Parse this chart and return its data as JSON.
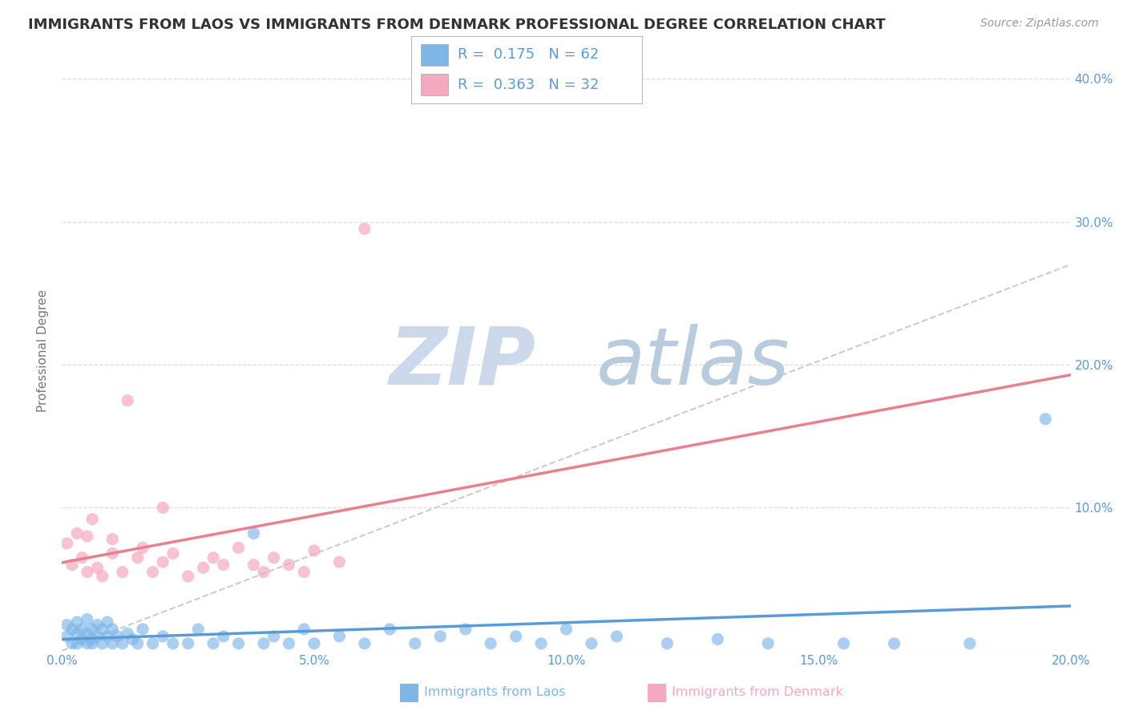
{
  "title": "IMMIGRANTS FROM LAOS VS IMMIGRANTS FROM DENMARK PROFESSIONAL DEGREE CORRELATION CHART",
  "source": "Source: ZipAtlas.com",
  "ylabel": "Professional Degree",
  "xlim": [
    0.0,
    0.2
  ],
  "ylim": [
    0.0,
    0.42
  ],
  "xticks": [
    0.0,
    0.05,
    0.1,
    0.15,
    0.2
  ],
  "xtick_labels": [
    "0.0%",
    "5.0%",
    "10.0%",
    "15.0%",
    "20.0%"
  ],
  "yticks": [
    0.0,
    0.1,
    0.2,
    0.3,
    0.4
  ],
  "right_ytick_labels": [
    "",
    "10.0%",
    "20.0%",
    "30.0%",
    "40.0%"
  ],
  "laos_color": "#7EB6E8",
  "denmark_color": "#F4A9C0",
  "laos_line_color": "#5B9BD5",
  "denmark_line_color": "#E88090",
  "tick_color": "#5B9BD5",
  "ylabel_color": "#777777",
  "grid_color": "#dddddd",
  "title_color": "#333333",
  "source_color": "#999999",
  "watermark_zip_color": "#ccd9eb",
  "watermark_atlas_color": "#b8ccde",
  "background_color": "#ffffff",
  "laos_R": 0.175,
  "laos_N": 62,
  "denmark_R": 0.363,
  "denmark_N": 32,
  "laos_scatter_x": [
    0.001,
    0.001,
    0.002,
    0.002,
    0.003,
    0.003,
    0.003,
    0.004,
    0.004,
    0.005,
    0.005,
    0.005,
    0.006,
    0.006,
    0.006,
    0.007,
    0.007,
    0.008,
    0.008,
    0.009,
    0.009,
    0.01,
    0.01,
    0.011,
    0.012,
    0.013,
    0.014,
    0.015,
    0.016,
    0.018,
    0.02,
    0.022,
    0.025,
    0.027,
    0.03,
    0.032,
    0.035,
    0.038,
    0.04,
    0.042,
    0.045,
    0.048,
    0.05,
    0.055,
    0.06,
    0.065,
    0.07,
    0.075,
    0.08,
    0.085,
    0.09,
    0.095,
    0.1,
    0.105,
    0.11,
    0.12,
    0.13,
    0.14,
    0.155,
    0.165,
    0.18,
    0.195
  ],
  "laos_scatter_y": [
    0.01,
    0.018,
    0.005,
    0.015,
    0.005,
    0.012,
    0.02,
    0.008,
    0.015,
    0.005,
    0.012,
    0.022,
    0.008,
    0.015,
    0.005,
    0.01,
    0.018,
    0.005,
    0.015,
    0.01,
    0.02,
    0.005,
    0.015,
    0.01,
    0.005,
    0.012,
    0.008,
    0.005,
    0.015,
    0.005,
    0.01,
    0.005,
    0.005,
    0.015,
    0.005,
    0.01,
    0.005,
    0.082,
    0.005,
    0.01,
    0.005,
    0.015,
    0.005,
    0.01,
    0.005,
    0.015,
    0.005,
    0.01,
    0.015,
    0.005,
    0.01,
    0.005,
    0.015,
    0.005,
    0.01,
    0.005,
    0.008,
    0.005,
    0.005,
    0.005,
    0.005,
    0.162
  ],
  "denmark_scatter_x": [
    0.001,
    0.002,
    0.003,
    0.004,
    0.005,
    0.005,
    0.006,
    0.007,
    0.008,
    0.01,
    0.01,
    0.012,
    0.013,
    0.015,
    0.016,
    0.018,
    0.02,
    0.02,
    0.022,
    0.025,
    0.028,
    0.03,
    0.032,
    0.035,
    0.038,
    0.04,
    0.042,
    0.045,
    0.048,
    0.05,
    0.055,
    0.06
  ],
  "denmark_scatter_y": [
    0.075,
    0.06,
    0.082,
    0.065,
    0.08,
    0.055,
    0.092,
    0.058,
    0.052,
    0.068,
    0.078,
    0.055,
    0.175,
    0.065,
    0.072,
    0.055,
    0.062,
    0.1,
    0.068,
    0.052,
    0.058,
    0.065,
    0.06,
    0.072,
    0.06,
    0.055,
    0.065,
    0.06,
    0.055,
    0.07,
    0.062,
    0.295
  ],
  "legend_R_color": "#5B9BD5",
  "legend_N_color": "#5B9BD5"
}
